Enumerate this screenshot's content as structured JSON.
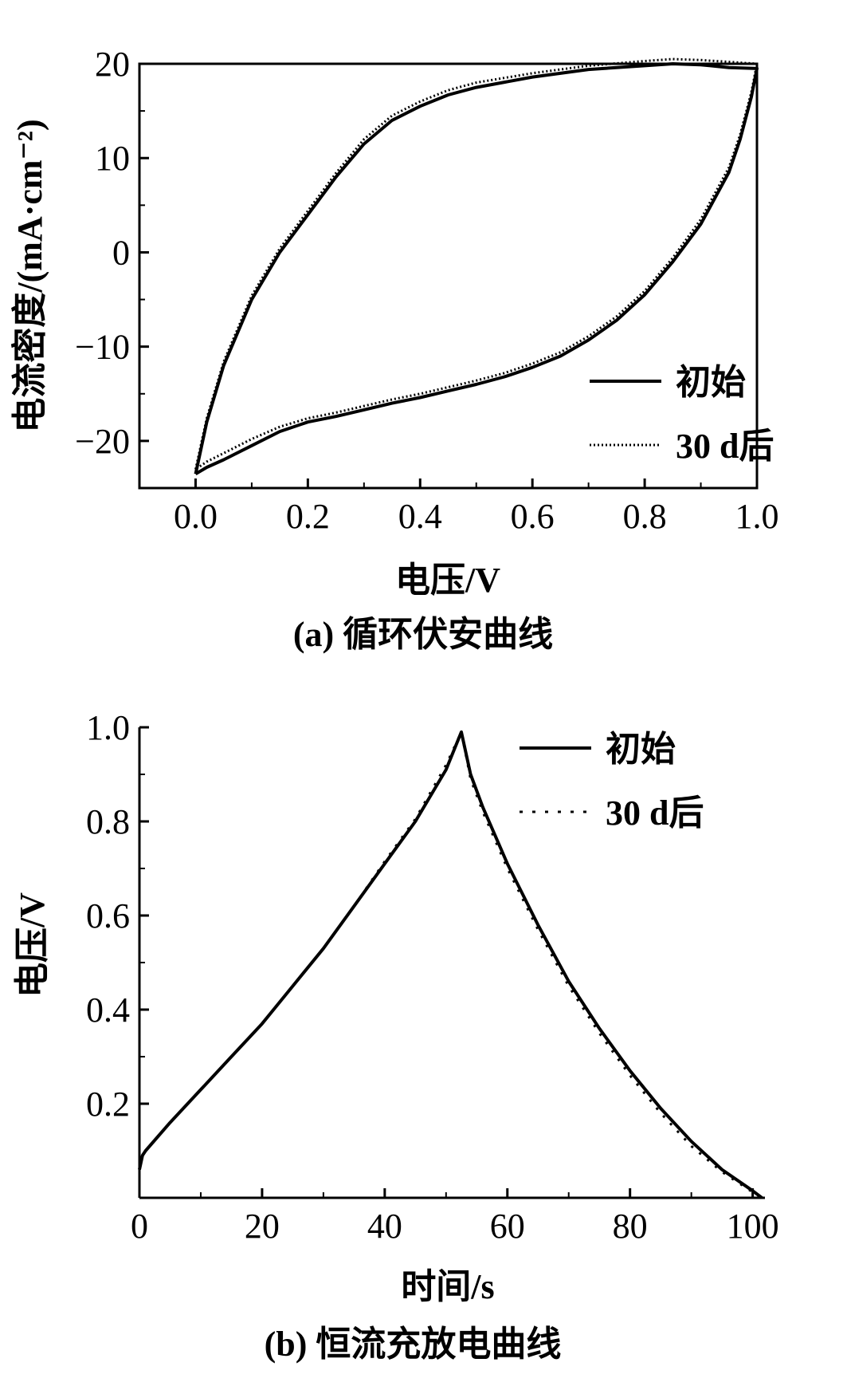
{
  "chart_data": [
    {
      "type": "line",
      "caption": "(a) 循环伏安曲线",
      "xlabel": "电压/V",
      "ylabel": "电流密度/(mA·cm⁻²)",
      "xlim": [
        -0.1,
        1.0
      ],
      "ylim": [
        -25,
        20
      ],
      "xticks": [
        0.0,
        0.2,
        0.4,
        0.6,
        0.8,
        1.0
      ],
      "xtick_labels": [
        "0.0",
        "0.2",
        "0.4",
        "0.6",
        "0.8",
        "1.0"
      ],
      "yticks": [
        -20,
        -10,
        0,
        10,
        20
      ],
      "ytick_labels": [
        "−20",
        "−10",
        "0",
        "10",
        "20"
      ],
      "legend_position": "bottom-right",
      "series": [
        {
          "name": "初始",
          "style": "solid",
          "x": [
            0.0,
            0.02,
            0.05,
            0.1,
            0.15,
            0.2,
            0.25,
            0.3,
            0.35,
            0.4,
            0.45,
            0.5,
            0.6,
            0.7,
            0.8,
            0.85,
            0.9,
            0.95,
            1.0,
            0.99,
            0.97,
            0.95,
            0.9,
            0.85,
            0.8,
            0.75,
            0.7,
            0.65,
            0.6,
            0.55,
            0.5,
            0.45,
            0.4,
            0.35,
            0.3,
            0.25,
            0.2,
            0.15,
            0.1,
            0.05,
            0.02,
            0.0
          ],
          "y": [
            -23.5,
            -18,
            -12,
            -5,
            0,
            4,
            8,
            11.5,
            14,
            15.5,
            16.7,
            17.5,
            18.6,
            19.4,
            19.8,
            20,
            19.9,
            19.6,
            19.5,
            16.5,
            12,
            8.5,
            3,
            -1,
            -4.5,
            -7.2,
            -9.3,
            -11,
            -12.2,
            -13.2,
            -14,
            -14.7,
            -15.4,
            -16,
            -16.7,
            -17.4,
            -18,
            -19,
            -20.5,
            -22,
            -22.8,
            -23.5
          ]
        },
        {
          "name": "30 d后",
          "style": "dotted",
          "x": [
            0.0,
            0.02,
            0.05,
            0.1,
            0.15,
            0.2,
            0.25,
            0.3,
            0.35,
            0.4,
            0.45,
            0.5,
            0.6,
            0.7,
            0.8,
            0.85,
            0.9,
            0.95,
            1.0,
            0.99,
            0.97,
            0.95,
            0.9,
            0.85,
            0.8,
            0.75,
            0.7,
            0.65,
            0.6,
            0.55,
            0.5,
            0.45,
            0.4,
            0.35,
            0.3,
            0.25,
            0.2,
            0.15,
            0.1,
            0.05,
            0.02,
            0.0
          ],
          "y": [
            -23,
            -17.6,
            -11.6,
            -4.6,
            0.4,
            4.4,
            8.4,
            12,
            14.5,
            16,
            17.2,
            18,
            19,
            19.8,
            20.3,
            20.5,
            20.4,
            20.2,
            20,
            17,
            12.5,
            9,
            3.5,
            -0.6,
            -4.1,
            -6.8,
            -8.9,
            -10.6,
            -11.8,
            -12.8,
            -13.6,
            -14.3,
            -15,
            -15.6,
            -16.3,
            -17,
            -17.6,
            -18.5,
            -19.8,
            -21.3,
            -22.2,
            -23
          ]
        }
      ]
    },
    {
      "type": "line",
      "caption": "(b) 恒流充放电曲线",
      "xlabel": "时间/s",
      "ylabel": "电压/V",
      "xlim": [
        0,
        102
      ],
      "ylim": [
        0,
        1.0
      ],
      "xticks": [
        0,
        20,
        40,
        60,
        80,
        100
      ],
      "xtick_labels": [
        "0",
        "20",
        "40",
        "60",
        "80",
        "100"
      ],
      "yticks": [
        0.2,
        0.4,
        0.6,
        0.8,
        1.0
      ],
      "ytick_labels": [
        "0.2",
        "0.4",
        "0.6",
        "0.8",
        "1.0"
      ],
      "legend_position": "top-right",
      "series": [
        {
          "name": "初始",
          "style": "solid",
          "x": [
            0,
            0.5,
            1,
            5,
            10,
            15,
            20,
            25,
            30,
            35,
            40,
            45,
            50,
            52.5,
            54,
            56,
            58,
            60,
            65,
            70,
            75,
            80,
            85,
            90,
            95,
            100,
            101.5
          ],
          "y": [
            0.06,
            0.09,
            0.1,
            0.16,
            0.23,
            0.3,
            0.37,
            0.45,
            0.53,
            0.62,
            0.71,
            0.8,
            0.91,
            0.99,
            0.9,
            0.83,
            0.77,
            0.71,
            0.58,
            0.46,
            0.36,
            0.27,
            0.19,
            0.12,
            0.06,
            0.015,
            0.0
          ]
        },
        {
          "name": "30 d后",
          "style": "dotted",
          "x": [
            0,
            0.5,
            1,
            5,
            10,
            15,
            20,
            25,
            30,
            35,
            40,
            45,
            50,
            52.5,
            54,
            56,
            58,
            60,
            65,
            70,
            75,
            80,
            85,
            90,
            95,
            100,
            101.5
          ],
          "y": [
            0.06,
            0.09,
            0.1,
            0.16,
            0.23,
            0.3,
            0.37,
            0.45,
            0.53,
            0.62,
            0.715,
            0.805,
            0.92,
            0.99,
            0.89,
            0.82,
            0.76,
            0.7,
            0.57,
            0.45,
            0.35,
            0.26,
            0.18,
            0.11,
            0.055,
            0.012,
            0.0
          ]
        }
      ]
    }
  ]
}
